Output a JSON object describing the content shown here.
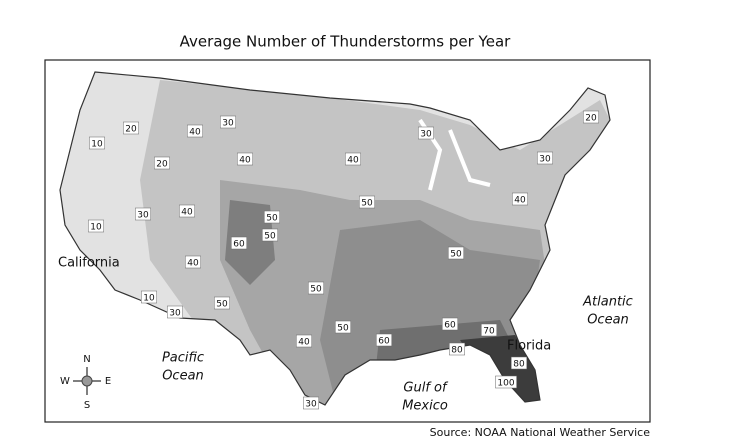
{
  "title": "Average Number of Thunderstorms per Year",
  "contour_labels": [
    20,
    10,
    20,
    40,
    30,
    40,
    30,
    20,
    40,
    30,
    30,
    40,
    10,
    50,
    50,
    60,
    50,
    40,
    50,
    40,
    50,
    10,
    50,
    30,
    40,
    50,
    60,
    60,
    70,
    80,
    80,
    100,
    30
  ],
  "places": [
    "California",
    "Florida"
  ],
  "water_labels": [
    [
      "Pacific",
      "Ocean"
    ],
    [
      "Gulf of",
      "Mexico"
    ],
    [
      "Atlantic",
      "Ocean"
    ]
  ],
  "compass": [
    "N",
    "E",
    "S",
    "W"
  ],
  "source": "Source: NOAA National Weather Service"
}
